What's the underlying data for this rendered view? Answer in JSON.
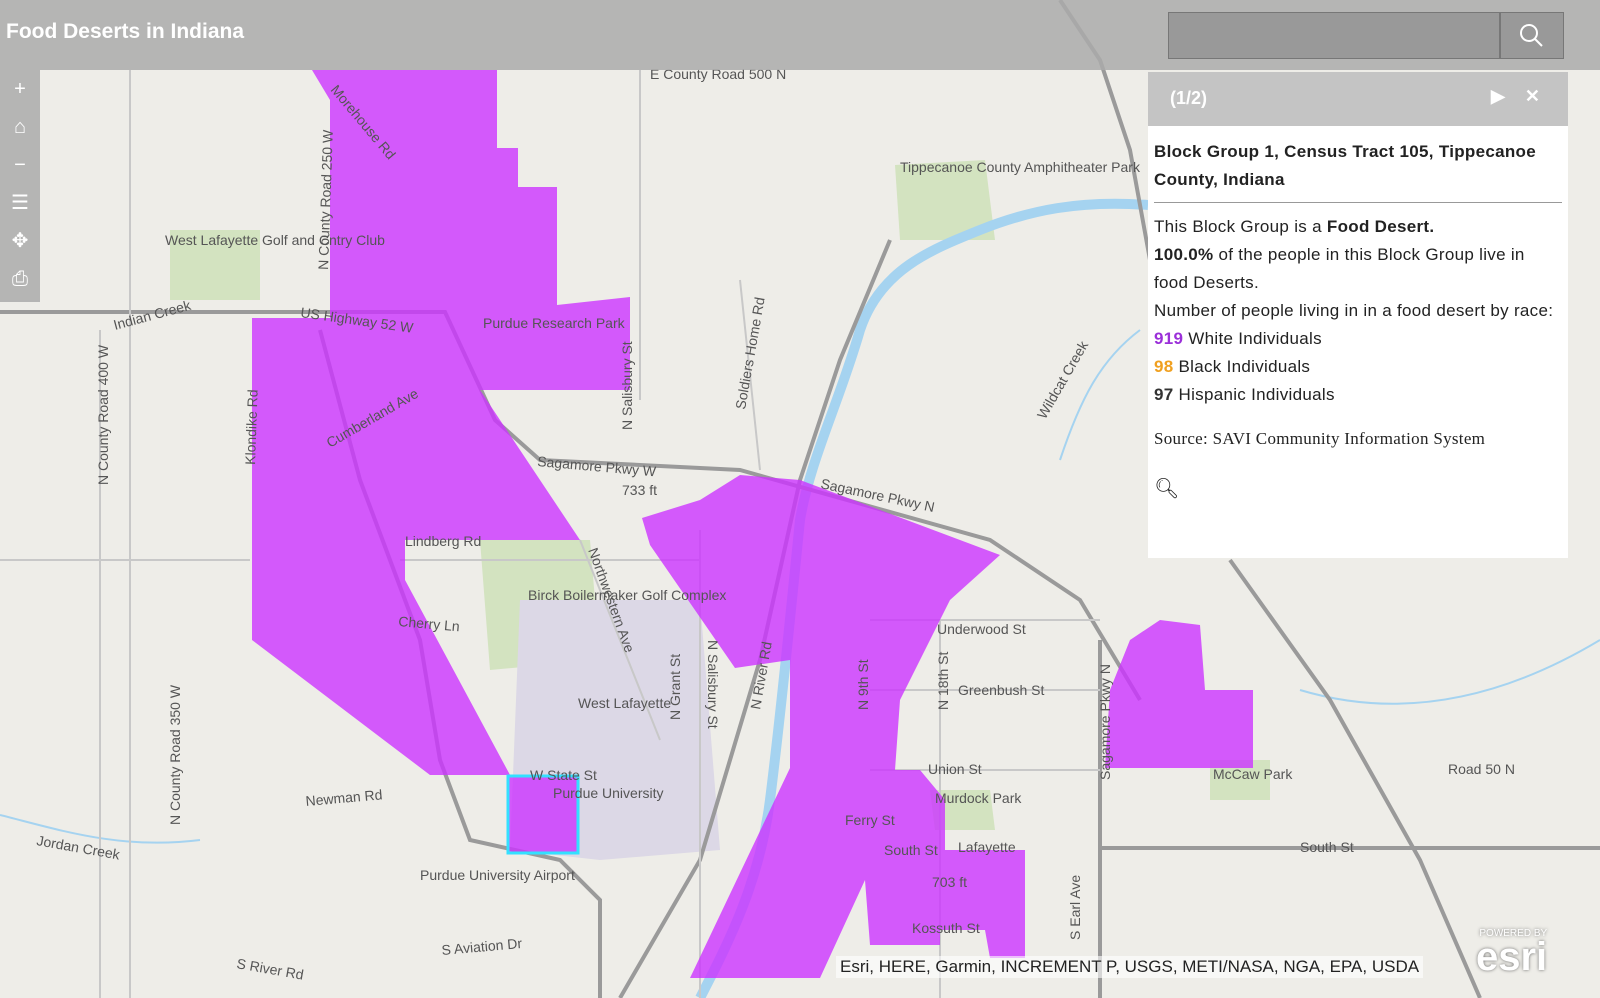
{
  "header": {
    "title": "Food Deserts in Indiana"
  },
  "popup": {
    "pager": "(1/2)",
    "heading": "Block Group 1, Census Tract 105, Tippecanoe County, Indiana",
    "intro": "This Block Group is a ",
    "intro_bold": "Food Desert.",
    "share": "100.0%",
    "share_text": " of the people in this Block Group live in food Deserts.",
    "race_intro": "Number of people living in in a food desert by race:",
    "race": [
      {
        "count": 919,
        "label": "White Individuals",
        "color": "#9b30d9"
      },
      {
        "count": 98,
        "label": "Black Individuals",
        "color": "#f0a020"
      },
      {
        "count": 97,
        "label": "Hispanic Individuals",
        "color": "#333333"
      }
    ],
    "source": "Source: SAVI Community Information System"
  },
  "attribution": "Esri, HERE, Garmin, INCREMENT P, USGS, METI/NASA, NGA, EPA, USDA",
  "logo": {
    "powered": "POWERED BY",
    "name": "esri"
  },
  "map_labels": [
    "E County Road 500 N",
    "Morehouse Rd",
    "N County Road 250 W",
    "West Lafayette Golf and Cntry Club",
    "Indian Creek",
    "US Highway 52 W",
    "Purdue Research Park",
    "Klondike Rd",
    "Cumberland Ave",
    "N County Road 400 W",
    "Sagamore Pkwy W",
    "733 ft",
    "Lindberg Rd",
    "Cherry Ln",
    "Birck Boilermaker Golf Complex",
    "Northwestern Ave",
    "West Lafayette",
    "N Grant St",
    "N Salisbury St",
    "N River Rd",
    "Tippecanoe County Amphitheater Park",
    "N 9th St",
    "Soldiers Home Rd",
    "N Salisbury St",
    "Wildcat Creek",
    "Sagamore Pkwy N",
    "Underwood St",
    "Greenbush St",
    "N 18th St",
    "Union St",
    "Murdock Park",
    "Ferry St",
    "South St",
    "Lafayette",
    "703 ft",
    "Kossuth St",
    "S Earl Ave",
    "Sagamore Pkwy N",
    "McCaw Park",
    "South St",
    "Road 50 N",
    "Newman Rd",
    "N County Road 350 W",
    "Jordan Creek",
    "Purdue University Airport",
    "S Aviation Dr",
    "S River Rd",
    "W State St",
    "Purdue University"
  ]
}
